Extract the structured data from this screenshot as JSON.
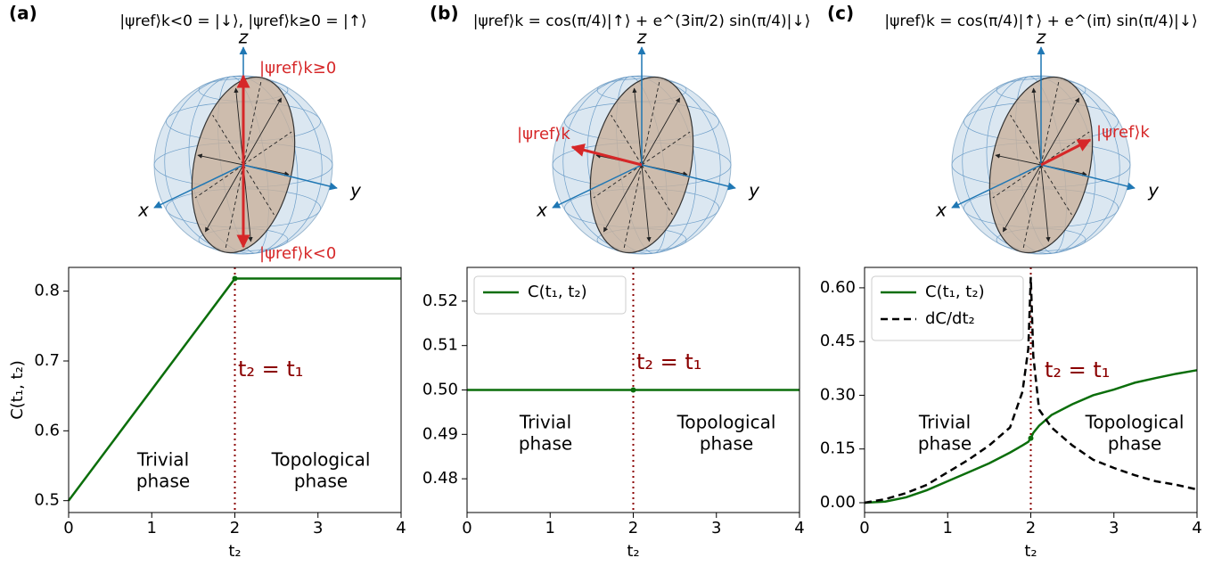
{
  "chart_data": [
    {
      "type": "line",
      "panel_label": "(a)",
      "sphere": {
        "title": "|ψref⟩k<0 = |↓⟩,  |ψref⟩k≥0 = |↑⟩",
        "axis_labels": [
          "x",
          "y",
          "z"
        ],
        "state_labels": [
          "|ψref⟩k≥0",
          "|ψref⟩k<0"
        ]
      },
      "x_label": "t₂",
      "y_label": "C(t₁, t₂)",
      "xlim": [
        0,
        4
      ],
      "xticks": [
        0,
        1,
        2,
        3,
        4
      ],
      "ylim": [
        0.483,
        0.834
      ],
      "yticks": [
        0.5,
        0.6,
        0.7,
        0.8
      ],
      "x": [
        0,
        2,
        4
      ],
      "series": [
        {
          "color": "#0b6e0b",
          "linestyle": "solid",
          "values": [
            0.5,
            0.818,
            0.818
          ]
        }
      ],
      "vline": 2,
      "vline_color": "#8b0000",
      "annotation": "t₂ = t₁",
      "phase_labels": [
        [
          "Trivial",
          "phase"
        ],
        [
          "Topological",
          "phase"
        ]
      ]
    },
    {
      "type": "line",
      "panel_label": "(b)",
      "sphere": {
        "title": "|ψref⟩k = cos(π/4)|↑⟩ + e^(3iπ/2) sin(π/4)|↓⟩",
        "axis_labels": [
          "x",
          "y",
          "z"
        ],
        "state_labels": [
          "|ψref⟩k"
        ]
      },
      "x_label": "t₂",
      "xlim": [
        0,
        4
      ],
      "xticks": [
        0,
        1,
        2,
        3,
        4
      ],
      "ylim": [
        0.4724,
        0.5276
      ],
      "yticks": [
        0.48,
        0.49,
        {
          "value": 0.5,
          "label": "0.50"
        },
        0.51,
        0.52
      ],
      "x": [
        0,
        2,
        4
      ],
      "series": [
        {
          "name": "C(t₁, t₂)",
          "color": "#0b6e0b",
          "linestyle": "solid",
          "values": [
            0.5,
            0.5,
            0.5
          ]
        }
      ],
      "legend": "upper left",
      "vline": 2,
      "vline_color": "#8b0000",
      "annotation": "t₂ = t₁",
      "phase_labels": [
        [
          "Trivial",
          "phase"
        ],
        [
          "Topological",
          "phase"
        ]
      ]
    },
    {
      "type": "line",
      "panel_label": "(c)",
      "sphere": {
        "title": "|ψref⟩k = cos(π/4)|↑⟩ + e^(iπ) sin(π/4)|↓⟩",
        "axis_labels": [
          "x",
          "y",
          "z"
        ],
        "state_labels": [
          "|ψref⟩k"
        ]
      },
      "x_label": "t₂",
      "xlim": [
        0,
        4
      ],
      "xticks": [
        0,
        1,
        2,
        3,
        4
      ],
      "ylim": [
        -0.0274,
        0.657
      ],
      "yticks": [
        {
          "value": 0,
          "label": "0.00"
        },
        0.15,
        {
          "value": 0.3,
          "label": "0.30"
        },
        0.45,
        {
          "value": 0.6,
          "label": "0.60"
        }
      ],
      "x": [
        0,
        0.25,
        0.5,
        0.75,
        1,
        1.25,
        1.5,
        1.75,
        1.9,
        1.97,
        2,
        2.03,
        2.1,
        2.25,
        2.5,
        2.75,
        3,
        3.25,
        3.5,
        3.75,
        4
      ],
      "series": [
        {
          "name": "C(t₁, t₂)",
          "color": "#0b6e0b",
          "linestyle": "solid",
          "values": [
            0,
            0.003,
            0.015,
            0.035,
            0.06,
            0.085,
            0.11,
            0.14,
            0.16,
            0.17,
            0.18,
            0.195,
            0.215,
            0.245,
            0.275,
            0.3,
            0.316,
            0.335,
            0.348,
            0.36,
            0.37
          ]
        },
        {
          "name": "dC/dt₂",
          "color": "#000000",
          "linestyle": "dashed",
          "values": [
            0,
            0.01,
            0.027,
            0.05,
            0.085,
            0.12,
            0.16,
            0.21,
            0.31,
            0.43,
            0.63,
            0.41,
            0.26,
            0.21,
            0.16,
            0.12,
            0.097,
            0.077,
            0.06,
            0.05,
            0.037
          ]
        }
      ],
      "legend": "upper left",
      "vline": 2,
      "vline_color": "#8b0000",
      "annotation": "t₂ = t₁",
      "phase_labels": [
        [
          "Trivial",
          "phase"
        ],
        [
          "Topological",
          "phase"
        ]
      ]
    }
  ]
}
